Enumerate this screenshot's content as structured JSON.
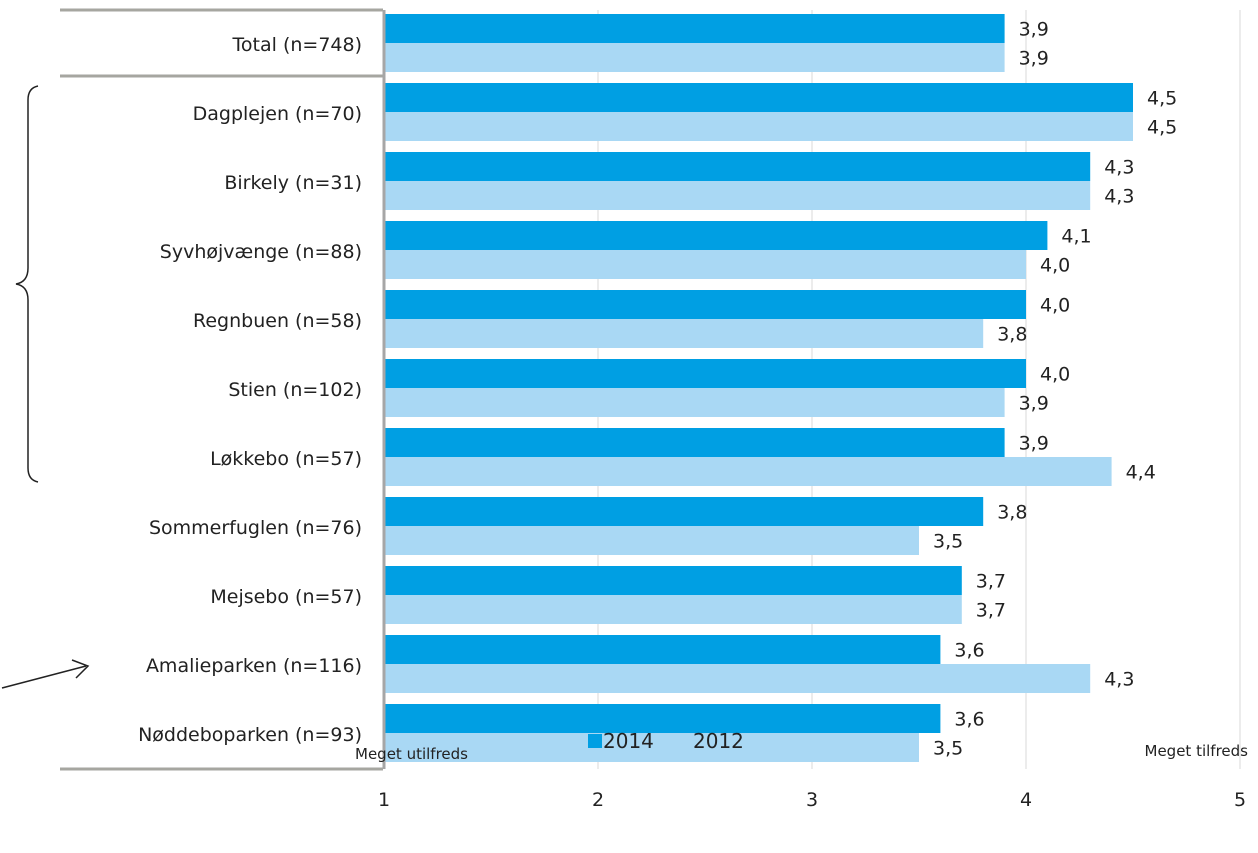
{
  "chart_data": {
    "type": "bar",
    "orientation": "horizontal",
    "categories": [
      "Total (n=748)",
      "Dagplejen (n=70)",
      "Birkely (n=31)",
      "Syvhøjvænge (n=88)",
      "Regnbuen (n=58)",
      "Stien (n=102)",
      "Løkkebo (n=57)",
      "Sommerfuglen (n=76)",
      "Mejsebo (n=57)",
      "Amalieparken (n=116)",
      "Nøddeboparken (n=93)"
    ],
    "series": [
      {
        "name": "2014",
        "color": "#009fe3",
        "values": [
          3.9,
          4.5,
          4.3,
          4.1,
          4.0,
          4.0,
          3.9,
          3.8,
          3.7,
          3.6,
          3.6
        ],
        "labels": [
          "3,9",
          "4,5",
          "4,3",
          "4,1",
          "4,0",
          "4,0",
          "3,9",
          "3,8",
          "3,7",
          "3,6",
          "3,6"
        ]
      },
      {
        "name": "2012",
        "color": "#a9d8f4",
        "values": [
          3.9,
          4.5,
          4.3,
          4.0,
          3.8,
          3.9,
          4.4,
          3.5,
          3.7,
          4.3,
          3.5
        ],
        "labels": [
          "3,9",
          "4,5",
          "4,3",
          "4,0",
          "3,8",
          "3,9",
          "4,4",
          "3,5",
          "3,7",
          "4,3",
          "3,5"
        ]
      }
    ],
    "xlim": [
      1,
      5
    ],
    "xticks": [
      "1",
      "2",
      "3",
      "4",
      "5"
    ],
    "scale_low_label": "Meget utilfreds",
    "scale_high_label": "Meget tilfreds",
    "legend_position": "bottom",
    "grid": true,
    "gridline_color": "#d9d9d9",
    "axis_color": "#a6a6a6",
    "annotations": [
      "brace grouping Dagplejen to Løkkebo",
      "arrow pointing to Amalieparken"
    ]
  }
}
